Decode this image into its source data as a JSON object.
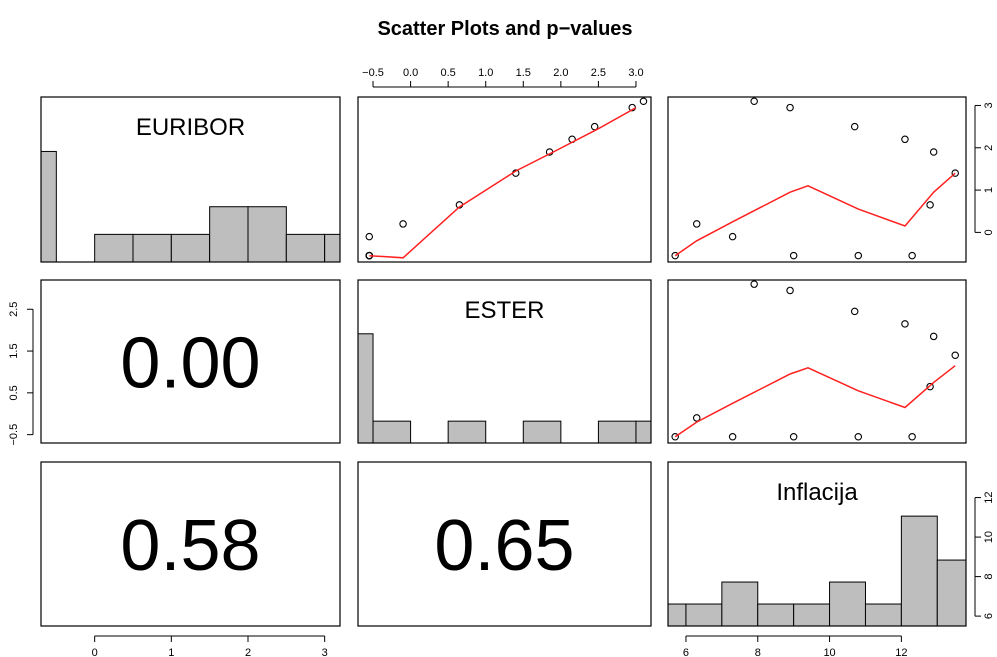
{
  "title": "Scatter Plots and p−values",
  "chart_data": {
    "type": "scatter",
    "title": "Scatter Plots and p−values",
    "variables": [
      "EURIBOR",
      "ESTER",
      "Inflacija"
    ],
    "observations": {
      "EURIBOR": [
        -0.55,
        -0.55,
        -0.55,
        -0.55,
        -0.1,
        0.2,
        0.65,
        1.4,
        1.9,
        2.2,
        2.5,
        2.95,
        3.1
      ],
      "ESTER": [
        -0.55,
        -0.55,
        -0.55,
        -0.55,
        -0.55,
        -0.1,
        0.65,
        1.4,
        1.85,
        2.15,
        2.45,
        2.95,
        3.1
      ],
      "Inflacija": [
        5.7,
        12.3,
        10.8,
        9.0,
        7.3,
        6.3,
        12.8,
        13.5,
        12.9,
        12.1,
        10.7,
        8.9,
        7.9
      ]
    },
    "axes": {
      "EURIBOR": {
        "range": [
          -0.7,
          3.2
        ],
        "ticks": [
          0,
          1,
          2,
          3
        ],
        "tick_labels": [
          "0",
          "1",
          "2",
          "3"
        ]
      },
      "ESTER": {
        "range": [
          -0.7,
          3.2
        ],
        "ticks": [
          -0.5,
          0.0,
          0.5,
          1.0,
          1.5,
          2.0,
          2.5,
          3.0
        ],
        "tick_labels": [
          "−0.5",
          "0.0",
          "0.5",
          "1.0",
          "1.5",
          "2.0",
          "2.5",
          "3.0"
        ],
        "left_ticks": [
          -0.5,
          0.5,
          1.5,
          2.5
        ],
        "left_tick_labels": [
          "−0.5",
          "0.5",
          "1.5",
          "2.5"
        ]
      },
      "Inflacija": {
        "range": [
          5.5,
          13.8
        ],
        "ticks": [
          6,
          8,
          10,
          12
        ],
        "tick_labels": [
          "6",
          "8",
          "10",
          "12"
        ],
        "right_ticks": [
          6,
          8,
          10,
          12
        ],
        "right_tick_labels": [
          "6",
          "8",
          "10",
          "12"
        ]
      },
      "EURIBOR_right": {
        "ticks": [
          0,
          1,
          2,
          3
        ],
        "tick_labels": [
          "0",
          "1",
          "2",
          "3"
        ]
      }
    },
    "histograms": {
      "EURIBOR": {
        "breaks": [
          -1.0,
          -0.5,
          0.0,
          0.5,
          1.0,
          1.5,
          2.0,
          2.5,
          3.0,
          3.5
        ],
        "counts": [
          4,
          0,
          1,
          1,
          1,
          2,
          2,
          1,
          1
        ]
      },
      "ESTER": {
        "breaks": [
          -1.0,
          -0.5,
          0.0,
          0.5,
          1.0,
          1.5,
          2.0,
          2.5,
          3.0,
          3.5
        ],
        "counts": [
          5,
          1,
          0,
          1,
          0,
          1,
          0,
          1,
          1
        ]
      },
      "Inflacija": {
        "breaks": [
          5,
          6,
          7,
          8,
          9,
          10,
          11,
          12,
          13,
          14
        ],
        "counts": [
          1,
          1,
          2,
          1,
          1,
          2,
          1,
          5,
          3
        ]
      }
    },
    "smoothers": {
      "ESTER_vs_EURIBOR": [
        [
          -0.55,
          -0.55
        ],
        [
          -0.1,
          -0.6
        ],
        [
          0.65,
          0.6
        ],
        [
          1.4,
          1.45
        ],
        [
          1.9,
          1.9
        ],
        [
          2.5,
          2.45
        ],
        [
          3.0,
          2.95
        ]
      ],
      "EURIBOR_vs_Inflacija": [
        [
          5.7,
          -0.55
        ],
        [
          6.3,
          -0.2
        ],
        [
          7.3,
          0.25
        ],
        [
          8.9,
          0.95
        ],
        [
          9.4,
          1.1
        ],
        [
          10.8,
          0.55
        ],
        [
          12.1,
          0.15
        ],
        [
          12.9,
          0.95
        ],
        [
          13.5,
          1.4
        ]
      ],
      "ESTER_vs_Inflacija": [
        [
          5.7,
          -0.55
        ],
        [
          6.3,
          -0.2
        ],
        [
          7.3,
          0.25
        ],
        [
          8.9,
          0.95
        ],
        [
          9.4,
          1.1
        ],
        [
          10.8,
          0.55
        ],
        [
          12.1,
          0.15
        ],
        [
          12.9,
          0.75
        ],
        [
          13.5,
          1.15
        ]
      ]
    },
    "p_values": [
      {
        "row": "ESTER",
        "col": "EURIBOR",
        "label": "0.00"
      },
      {
        "row": "Inflacija",
        "col": "EURIBOR",
        "label": "0.58"
      },
      {
        "row": "Inflacija",
        "col": "ESTER",
        "label": "0.65"
      }
    ],
    "grid": false,
    "legend": "none"
  }
}
